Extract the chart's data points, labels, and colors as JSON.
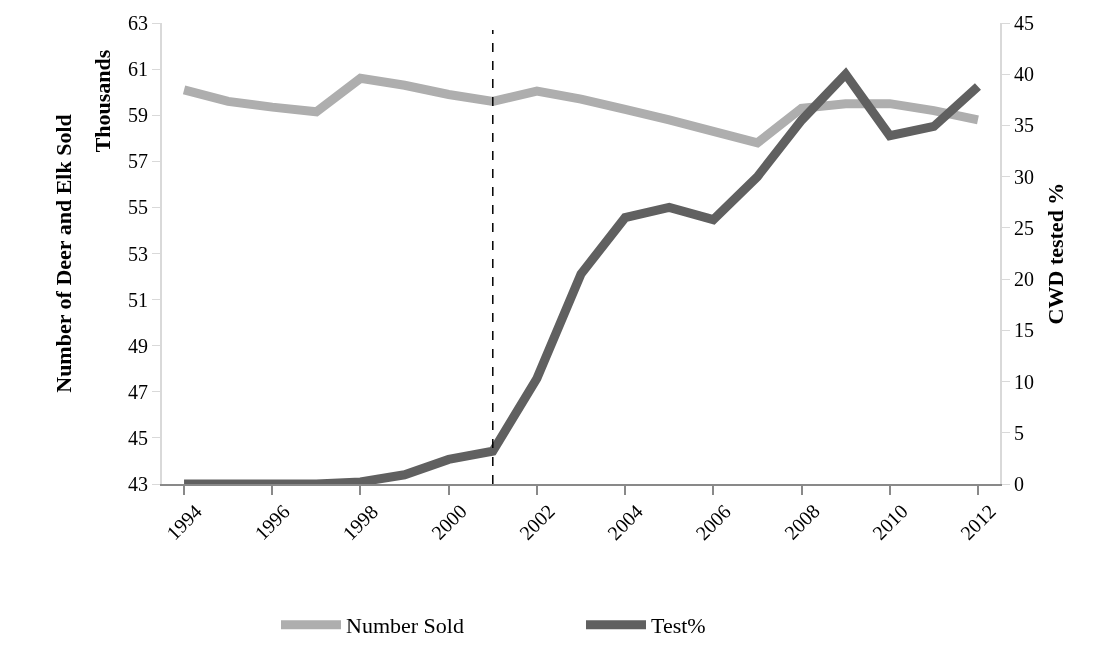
{
  "chart_data": {
    "type": "line",
    "ylabel": "Number of Deer and Elk Sold",
    "y2label": "CWD tested %",
    "annotations": [
      "Thousands"
    ],
    "x": [
      1994,
      1995,
      1996,
      1997,
      1998,
      1999,
      2000,
      2001,
      2002,
      2003,
      2004,
      2005,
      2006,
      2007,
      2008,
      2009,
      2010,
      2011,
      2012
    ],
    "xlim": [
      1993.5,
      2012.5
    ],
    "xticks": [
      1994,
      1996,
      1998,
      2000,
      2002,
      2004,
      2006,
      2008,
      2010,
      2012
    ],
    "ylim": [
      43,
      63
    ],
    "yticks": [
      43,
      45,
      47,
      49,
      51,
      53,
      55,
      57,
      59,
      61,
      63
    ],
    "y2lim": [
      0,
      45
    ],
    "y2ticks": [
      0,
      5,
      10,
      15,
      20,
      25,
      30,
      35,
      40,
      45
    ],
    "series": [
      {
        "name": "Number Sold",
        "color": "#aeaeae",
        "values": [
          60.1,
          59.6,
          59.35,
          59.15,
          60.6,
          60.3,
          59.9,
          59.6,
          60.05,
          59.7,
          59.25,
          58.8,
          58.3,
          57.8,
          59.3,
          59.5,
          59.5,
          59.2,
          58.8
        ]
      },
      {
        "name": "Test%",
        "color": "#606060",
        "axis": "y2",
        "values": [
          0,
          0,
          0,
          0,
          0.2,
          0.9,
          2.4,
          3.2,
          10.3,
          20.5,
          26.0,
          27.0,
          25.8,
          30.0,
          35.5,
          40.0,
          34.0,
          34.9,
          38.8
        ]
      }
    ],
    "ref_lines": [
      {
        "axis": "x",
        "value": 2001,
        "color": "#000000",
        "line_style": "dashed"
      }
    ],
    "legend": "bottom",
    "line_style": "solid"
  }
}
